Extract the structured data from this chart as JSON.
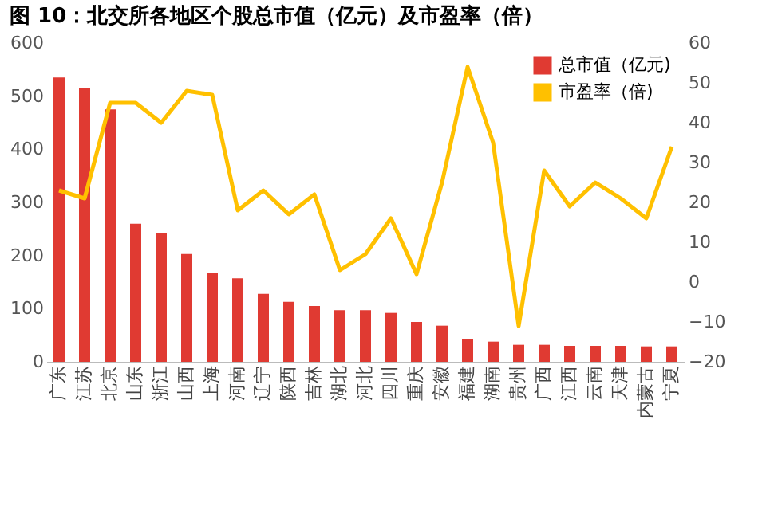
{
  "chart_data": {
    "type": "bar",
    "title": "图 10：北交所各地区个股总市值（亿元）及市盈率（倍）",
    "categories": [
      "广东",
      "江苏",
      "北京",
      "山东",
      "浙江",
      "山西",
      "上海",
      "河南",
      "辽宁",
      "陕西",
      "吉林",
      "湖北",
      "河北",
      "四川",
      "重庆",
      "安徽",
      "福建",
      "湖南",
      "贵州",
      "广西",
      "江西",
      "云南",
      "天津",
      "内蒙古",
      "宁夏"
    ],
    "series": [
      {
        "name": "总市值（亿元)",
        "color": "#e03a32",
        "values": [
          535,
          515,
          475,
          260,
          243,
          203,
          168,
          157,
          128,
          113,
          105,
          97,
          97,
          92,
          75,
          68,
          42,
          38,
          32,
          32,
          30,
          30,
          30,
          29,
          29
        ]
      },
      {
        "name": "市盈率（倍)",
        "type": "line",
        "axis": "y2",
        "color": "#ffc000",
        "values": [
          23,
          21,
          45,
          45,
          40,
          48,
          47,
          18,
          23,
          17,
          22,
          3,
          7,
          16,
          2,
          25,
          54,
          35,
          -11,
          28,
          19,
          25,
          21,
          16,
          34
        ]
      }
    ],
    "ylim": [
      0,
      600
    ],
    "yticks": [
      0,
      100,
      200,
      300,
      400,
      500,
      600
    ],
    "y2lim": [
      -20,
      60
    ],
    "y2ticks": [
      -20,
      -10,
      0,
      10,
      20,
      30,
      40,
      50,
      60
    ],
    "legend": "top right",
    "grid": false
  }
}
